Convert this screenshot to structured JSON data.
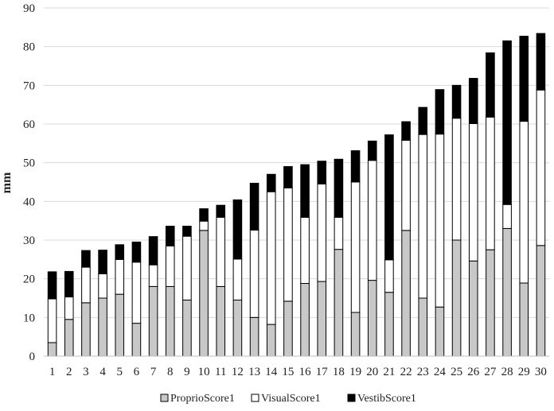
{
  "chart_data": {
    "type": "bar",
    "stacked": true,
    "title": "",
    "xlabel": "",
    "ylabel": "mm",
    "ylim": [
      0,
      90
    ],
    "yticks": [
      0,
      10,
      20,
      30,
      40,
      50,
      60,
      70,
      80,
      90
    ],
    "grid": true,
    "legend_position": "bottom",
    "categories": [
      "1",
      "2",
      "3",
      "4",
      "5",
      "6",
      "7",
      "8",
      "9",
      "10",
      "11",
      "12",
      "13",
      "14",
      "15",
      "16",
      "17",
      "18",
      "19",
      "20",
      "21",
      "22",
      "23",
      "24",
      "25",
      "26",
      "27",
      "28",
      "29",
      "30"
    ],
    "series": [
      {
        "name": "ProprioScore1",
        "color": "#c8c8c8",
        "values": [
          3.5,
          9.5,
          13.8,
          15,
          16,
          8.5,
          18,
          18,
          14.5,
          32.5,
          18,
          14.5,
          10,
          8.2,
          14.2,
          18.8,
          19.3,
          27.6,
          11.3,
          19.6,
          16.5,
          32.5,
          15,
          12.7,
          30,
          24.6,
          27.5,
          33,
          18.9,
          28.6
        ]
      },
      {
        "name": "VisualScore1",
        "color": "#ffffff",
        "values": [
          11.3,
          5.8,
          9.2,
          6.3,
          9,
          15.8,
          5.6,
          10.5,
          16.5,
          2.4,
          17.9,
          10.6,
          22.6,
          34.3,
          29.3,
          17.1,
          25.2,
          8.3,
          33.7,
          31,
          8.4,
          23.3,
          42.3,
          44.7,
          31.5,
          35.5,
          34.3,
          6.2,
          41.8,
          40.2
        ]
      },
      {
        "name": "VestibScore1",
        "color": "#000000",
        "values": [
          7,
          6.6,
          4.3,
          6.1,
          3.8,
          5.2,
          7.3,
          5.1,
          2.6,
          3.2,
          3.1,
          15.3,
          12.1,
          4.5,
          5.5,
          13.6,
          5.9,
          15,
          8.1,
          5,
          32.3,
          4.8,
          7,
          11.5,
          8.5,
          11.7,
          16.6,
          42.3,
          22,
          14.6
        ]
      }
    ]
  }
}
